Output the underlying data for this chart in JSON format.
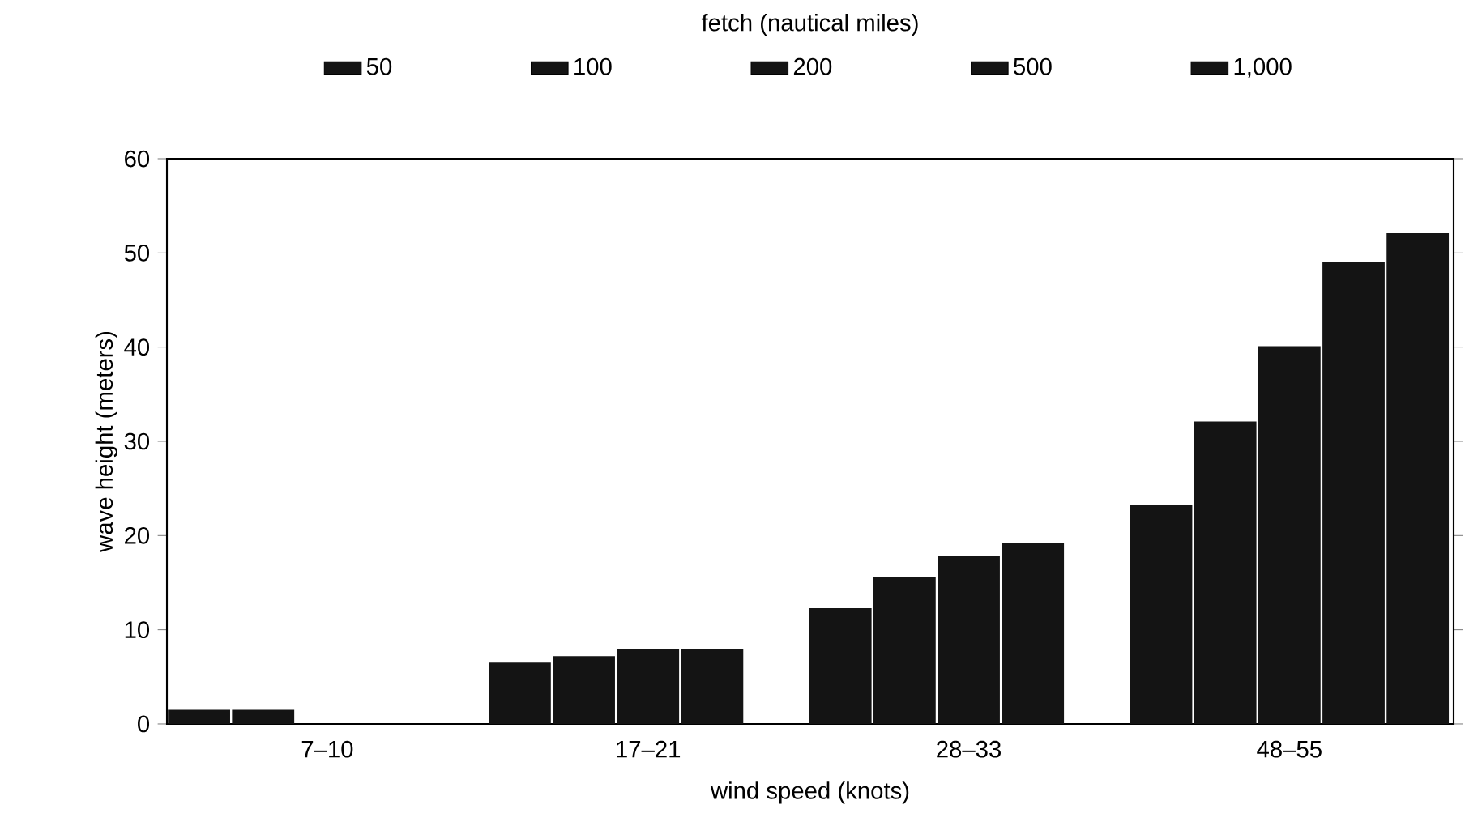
{
  "chart_data": {
    "type": "bar",
    "xlabel": "wind speed (knots)",
    "ylabel": "wave height (meters)",
    "legend_title": "fetch (nautical miles)",
    "categories": [
      "7–10",
      "17–21",
      "28–33",
      "48–55"
    ],
    "series": [
      {
        "name": "50",
        "color": "#141414",
        "values": [
          1.5,
          6.5,
          12.3,
          23.2
        ]
      },
      {
        "name": "100",
        "color": "#141414",
        "values": [
          1.5,
          7.2,
          15.6,
          32.1
        ]
      },
      {
        "name": "200",
        "color": "#141414",
        "values": [
          null,
          8,
          17.8,
          40.1
        ]
      },
      {
        "name": "500",
        "color": "#141414",
        "values": [
          null,
          8,
          19.2,
          49
        ]
      },
      {
        "name": "1,000",
        "color": "#141414",
        "values": [
          null,
          null,
          null,
          52.1
        ]
      }
    ],
    "ylim": [
      0,
      60
    ],
    "yticks": [
      0,
      10,
      20,
      30,
      40,
      50,
      60
    ],
    "legend": "top",
    "grid": false
  }
}
